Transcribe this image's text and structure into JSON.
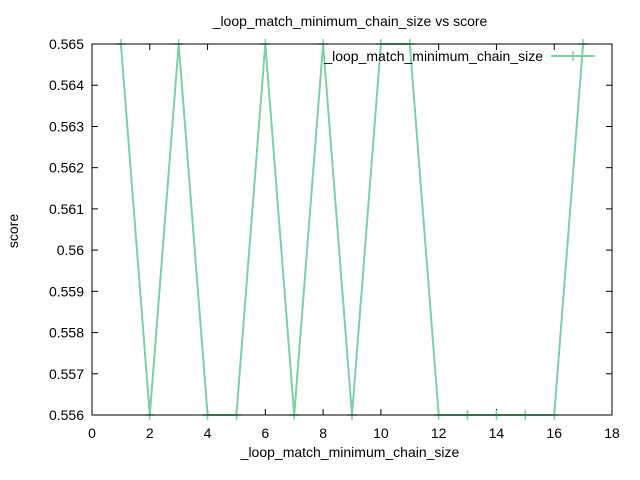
{
  "chart_data": {
    "type": "line",
    "title": "_loop_match_minimum_chain_size vs score",
    "xlabel": "_loop_match_minimum_chain_size",
    "ylabel": "score",
    "xlim": [
      0,
      18
    ],
    "ylim": [
      0.556,
      0.565
    ],
    "x_ticks": [
      "0",
      "2",
      "4",
      "6",
      "8",
      "10",
      "12",
      "14",
      "16",
      "18"
    ],
    "y_ticks": [
      "0.556",
      "0.557",
      "0.558",
      "0.559",
      "0.56",
      "0.561",
      "0.562",
      "0.563",
      "0.564",
      "0.565"
    ],
    "grid": false,
    "legend_position": "top-right",
    "series": [
      {
        "name": "_loop_match_minimum_chain_size",
        "color": "#7fcfa6",
        "x": [
          1,
          2,
          3,
          4,
          5,
          6,
          7,
          8,
          9,
          10,
          11,
          12,
          13,
          14,
          15,
          16,
          17
        ],
        "y": [
          0.565,
          0.556,
          0.565,
          0.556,
          0.556,
          0.565,
          0.556,
          0.565,
          0.556,
          0.565,
          0.565,
          0.556,
          0.556,
          0.556,
          0.556,
          0.556,
          0.565
        ]
      }
    ]
  }
}
